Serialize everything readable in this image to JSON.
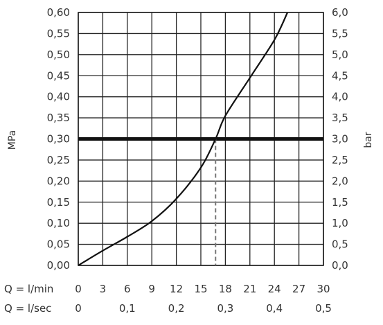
{
  "chart_data": {
    "type": "line",
    "title": "",
    "ylabel_left": "MPa",
    "ylabel_right": "bar",
    "ylim": [
      0,
      0.6
    ],
    "y_ticks_left": [
      "0,00",
      "0,05",
      "0,10",
      "0,15",
      "0,20",
      "0,25",
      "0,30",
      "0,35",
      "0,40",
      "0,45",
      "0,50",
      "0,55",
      "0,60"
    ],
    "y_ticks_right": [
      "0,0",
      "0,5",
      "1,0",
      "1,5",
      "2,0",
      "2,5",
      "3,0",
      "3,5",
      "4,0",
      "4,5",
      "5,0",
      "5,5",
      "6,0"
    ],
    "x_row1": {
      "label": "Q = l/min",
      "ticks": [
        "0",
        "3",
        "6",
        "9",
        "12",
        "15",
        "18",
        "21",
        "24",
        "27",
        "30"
      ],
      "xlim": [
        0,
        30
      ]
    },
    "x_row2": {
      "label": "Q = l/sec",
      "ticks": [
        "0",
        "0,1",
        "0,2",
        "0,3",
        "0,4",
        "0,5"
      ],
      "xlim": [
        0,
        0.5
      ]
    },
    "grid": true,
    "series": [
      {
        "x": [
          0,
          3,
          6,
          9,
          12,
          15,
          16.8,
          18,
          21,
          24,
          25.6
        ],
        "y": [
          0.0,
          0.035,
          0.068,
          0.105,
          0.158,
          0.232,
          0.3,
          0.355,
          0.445,
          0.535,
          0.6
        ]
      }
    ],
    "reference_line_y": 0.3,
    "reference_drop_x": 16.8
  }
}
